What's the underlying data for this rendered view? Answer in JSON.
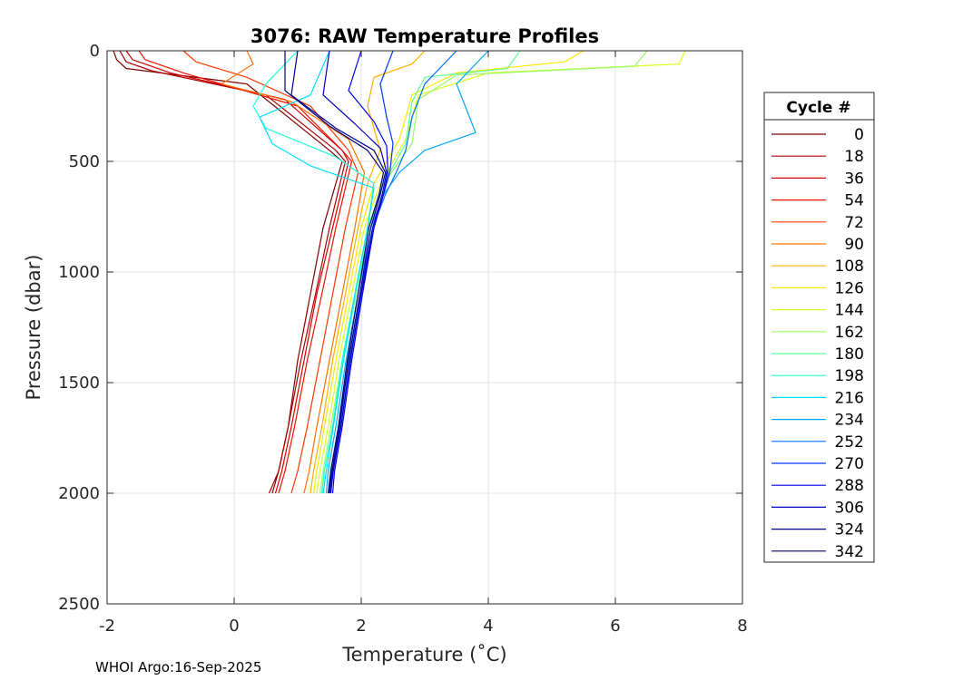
{
  "chart_data": {
    "type": "line",
    "title": "3076: RAW Temperature Profiles",
    "xlabel": "Temperature (˚C)",
    "ylabel": "Pressure (dbar)",
    "xlim": [
      -2,
      8
    ],
    "ylim": [
      0,
      2500
    ],
    "y_reversed": true,
    "grid": true,
    "x_ticks": [
      -2,
      0,
      2,
      4,
      6,
      8
    ],
    "y_ticks": [
      0,
      500,
      1000,
      1500,
      2000,
      2500
    ],
    "legend": {
      "title": "Cycle #",
      "placement": "right",
      "entries": [
        {
          "label": "0",
          "color": "#800000"
        },
        {
          "label": "18",
          "color": "#a80000"
        },
        {
          "label": "36",
          "color": "#d00000"
        },
        {
          "label": "54",
          "color": "#f51000"
        },
        {
          "label": "72",
          "color": "#ff3800"
        },
        {
          "label": "90",
          "color": "#ff7000"
        },
        {
          "label": "108",
          "color": "#ffb000"
        },
        {
          "label": "126",
          "color": "#ffe800"
        },
        {
          "label": "144",
          "color": "#d8ff20"
        },
        {
          "label": "162",
          "color": "#98ff60"
        },
        {
          "label": "180",
          "color": "#60ff98"
        },
        {
          "label": "198",
          "color": "#20ffd8"
        },
        {
          "label": "216",
          "color": "#00e0ff"
        },
        {
          "label": "234",
          "color": "#00a8ff"
        },
        {
          "label": "252",
          "color": "#0070ff"
        },
        {
          "label": "270",
          "color": "#0038ff"
        },
        {
          "label": "288",
          "color": "#0000f0"
        },
        {
          "label": "306",
          "color": "#0000c0"
        },
        {
          "label": "324",
          "color": "#000090"
        },
        {
          "label": "342",
          "color": "#000070"
        }
      ]
    },
    "series": [
      {
        "name": "Cycle 0",
        "color": "#800000",
        "temperature": [
          -1.9,
          -1.85,
          -1.7,
          0.2,
          1.5,
          1.7,
          1.4,
          1.2,
          1.0,
          0.85,
          0.7,
          0.6
        ],
        "pressure": [
          0,
          40,
          80,
          150,
          450,
          500,
          800,
          1100,
          1400,
          1700,
          1900,
          2000
        ]
      },
      {
        "name": "Cycle 18",
        "color": "#a80000",
        "temperature": [
          -1.8,
          -1.7,
          -1.3,
          0.5,
          1.6,
          1.75,
          1.5,
          1.28,
          1.05,
          0.85,
          0.7,
          0.55
        ],
        "pressure": [
          0,
          50,
          90,
          200,
          450,
          500,
          800,
          1100,
          1400,
          1700,
          1900,
          2000
        ]
      },
      {
        "name": "Cycle 36",
        "color": "#d00000",
        "temperature": [
          -1.7,
          -1.6,
          -1.0,
          0.8,
          1.7,
          1.8,
          1.55,
          1.3,
          1.1,
          0.9,
          0.75,
          0.65
        ],
        "pressure": [
          0,
          40,
          100,
          220,
          450,
          500,
          800,
          1100,
          1400,
          1700,
          1900,
          2000
        ]
      },
      {
        "name": "Cycle 54",
        "color": "#f51000",
        "temperature": [
          -1.5,
          -1.4,
          -0.8,
          1.0,
          1.7,
          1.85,
          1.6,
          1.38,
          1.15,
          0.95,
          0.8,
          0.7
        ],
        "pressure": [
          0,
          40,
          100,
          250,
          450,
          500,
          800,
          1100,
          1400,
          1700,
          1900,
          2000
        ]
      },
      {
        "name": "Cycle 72",
        "color": "#ff3800",
        "temperature": [
          -0.8,
          -0.6,
          0.2,
          1.2,
          1.8,
          1.95,
          1.75,
          1.55,
          1.35,
          1.15,
          1.0,
          0.9
        ],
        "pressure": [
          0,
          50,
          120,
          250,
          450,
          550,
          800,
          1100,
          1400,
          1700,
          1900,
          2000
        ]
      },
      {
        "name": "Cycle 90",
        "color": "#ff7000",
        "temperature": [
          0.2,
          0.3,
          -0.2,
          0.9,
          1.8,
          2.05,
          1.9,
          1.7,
          1.5,
          1.3,
          1.18,
          1.1
        ],
        "pressure": [
          0,
          60,
          150,
          230,
          400,
          550,
          800,
          1100,
          1400,
          1700,
          1900,
          2000
        ]
      },
      {
        "name": "Cycle 108",
        "color": "#ffb000",
        "temperature": [
          3.0,
          2.8,
          2.2,
          2.1,
          2.3,
          2.1,
          1.95,
          1.75,
          1.55,
          1.38,
          1.25,
          1.2
        ],
        "pressure": [
          0,
          60,
          120,
          250,
          450,
          600,
          800,
          1100,
          1400,
          1700,
          1900,
          2000
        ]
      },
      {
        "name": "Cycle 126",
        "color": "#ffe800",
        "temperature": [
          5.5,
          5.2,
          3.5,
          2.8,
          2.6,
          2.2,
          2.0,
          1.8,
          1.6,
          1.42,
          1.3,
          1.25
        ],
        "pressure": [
          0,
          50,
          100,
          200,
          400,
          600,
          800,
          1100,
          1400,
          1700,
          1900,
          2000
        ]
      },
      {
        "name": "Cycle 144",
        "color": "#d8ff20",
        "temperature": [
          7.1,
          7.0,
          4.0,
          2.9,
          2.7,
          2.3,
          2.05,
          1.85,
          1.65,
          1.48,
          1.35,
          1.3
        ],
        "pressure": [
          0,
          60,
          100,
          200,
          400,
          600,
          800,
          1100,
          1400,
          1700,
          1900,
          2000
        ]
      },
      {
        "name": "Cycle 162",
        "color": "#98ff60",
        "temperature": [
          6.5,
          6.3,
          3.5,
          2.9,
          2.8,
          2.35,
          2.1,
          1.9,
          1.7,
          1.52,
          1.4,
          1.35
        ],
        "pressure": [
          0,
          70,
          110,
          220,
          420,
          600,
          800,
          1100,
          1400,
          1700,
          1900,
          2000
        ]
      },
      {
        "name": "Cycle 180",
        "color": "#60ff98",
        "temperature": [
          4.5,
          4.3,
          3.0,
          2.8,
          2.7,
          2.35,
          2.12,
          1.92,
          1.72,
          1.55,
          1.42,
          1.38
        ],
        "pressure": [
          0,
          80,
          120,
          230,
          420,
          600,
          800,
          1100,
          1400,
          1700,
          1900,
          2000
        ]
      },
      {
        "name": "Cycle 198",
        "color": "#20ffd8",
        "temperature": [
          1.0,
          0.5,
          0.3,
          0.5,
          1.6,
          2.2,
          2.1,
          1.9,
          1.7,
          1.55,
          1.42,
          1.38
        ],
        "pressure": [
          0,
          150,
          250,
          350,
          480,
          600,
          800,
          1100,
          1400,
          1700,
          1900,
          2000
        ]
      },
      {
        "name": "Cycle 216",
        "color": "#00e0ff",
        "temperature": [
          1.5,
          1.2,
          0.4,
          0.6,
          1.2,
          2.2,
          2.1,
          1.9,
          1.72,
          1.56,
          1.45,
          1.4
        ],
        "pressure": [
          0,
          200,
          300,
          420,
          520,
          620,
          800,
          1100,
          1400,
          1700,
          1900,
          2000
        ]
      },
      {
        "name": "Cycle 234",
        "color": "#00a8ff",
        "temperature": [
          4.0,
          3.5,
          3.8,
          3.0,
          2.6,
          2.35,
          2.15,
          1.95,
          1.76,
          1.6,
          1.48,
          1.45
        ],
        "pressure": [
          0,
          150,
          370,
          450,
          550,
          650,
          800,
          1100,
          1400,
          1700,
          1900,
          2000
        ]
      },
      {
        "name": "Cycle 252",
        "color": "#0070ff",
        "temperature": [
          3.5,
          3.0,
          2.8,
          2.7,
          2.55,
          2.38,
          2.18,
          1.98,
          1.8,
          1.65,
          1.52,
          1.5
        ],
        "pressure": [
          0,
          150,
          300,
          450,
          550,
          650,
          800,
          1100,
          1400,
          1700,
          1900,
          2000
        ]
      },
      {
        "name": "Cycle 270",
        "color": "#0038ff",
        "temperature": [
          2.5,
          2.3,
          2.4,
          2.5,
          2.45,
          2.35,
          2.2,
          2.0,
          1.82,
          1.68,
          1.55,
          1.52
        ],
        "pressure": [
          0,
          150,
          300,
          420,
          550,
          650,
          800,
          1100,
          1400,
          1700,
          1900,
          2000
        ]
      },
      {
        "name": "Cycle 288",
        "color": "#0000f0",
        "temperature": [
          2.0,
          1.8,
          2.2,
          2.4,
          2.42,
          2.35,
          2.2,
          2.02,
          1.85,
          1.7,
          1.58,
          1.55
        ],
        "pressure": [
          0,
          180,
          320,
          430,
          550,
          650,
          800,
          1100,
          1400,
          1700,
          1900,
          2000
        ]
      },
      {
        "name": "Cycle 306",
        "color": "#0000c0",
        "temperature": [
          1.5,
          1.4,
          1.9,
          2.3,
          2.4,
          2.33,
          2.18,
          2.0,
          1.83,
          1.68,
          1.56,
          1.52
        ],
        "pressure": [
          0,
          200,
          330,
          440,
          550,
          650,
          800,
          1100,
          1400,
          1700,
          1900,
          2000
        ]
      },
      {
        "name": "Cycle 324",
        "color": "#000090",
        "temperature": [
          1.0,
          0.9,
          1.6,
          2.2,
          2.38,
          2.3,
          2.15,
          1.98,
          1.8,
          1.66,
          1.54,
          1.5
        ],
        "pressure": [
          0,
          200,
          350,
          450,
          550,
          650,
          800,
          1100,
          1400,
          1700,
          1900,
          2000
        ]
      },
      {
        "name": "Cycle 342",
        "color": "#000070",
        "temperature": [
          0.8,
          0.8,
          1.5,
          2.1,
          2.35,
          2.28,
          2.12,
          1.95,
          1.78,
          1.64,
          1.52,
          1.48
        ],
        "pressure": [
          0,
          180,
          340,
          450,
          550,
          650,
          800,
          1100,
          1400,
          1700,
          1900,
          2000
        ]
      }
    ]
  },
  "footer": "WHOI Argo:16-Sep-2025"
}
